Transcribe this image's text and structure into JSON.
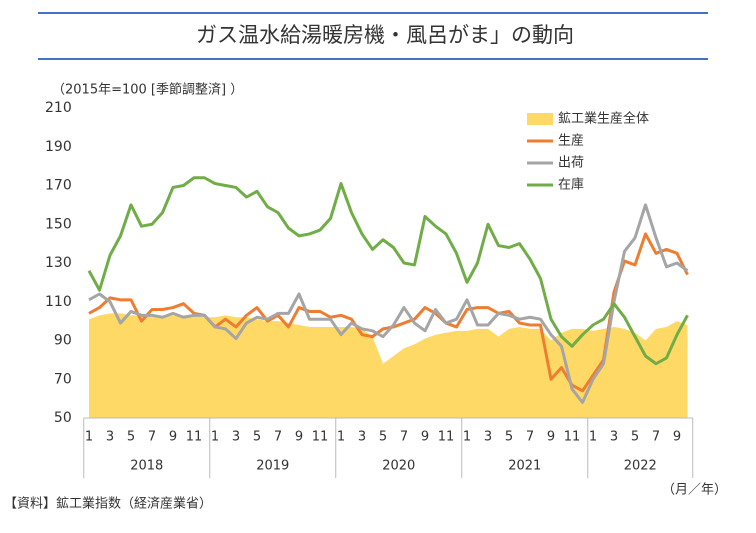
{
  "chart_data": {
    "type": "line",
    "title": "ガス温水給湯暖房機・風呂がま」の動向",
    "subtitle": "（2015年=100 [季節調整済] ）",
    "source": "【資料】鉱工業指数（経済産業省）",
    "x_unit": "（月／年）",
    "categories": [
      "1",
      null,
      "3",
      null,
      "5",
      null,
      "7",
      null,
      "9",
      null,
      "11",
      null,
      "1",
      null,
      "3",
      null,
      "5",
      null,
      "7",
      null,
      "9",
      null,
      "11",
      null,
      "1",
      null,
      "3",
      null,
      "5",
      null,
      "7",
      null,
      "9",
      null,
      "11",
      null,
      "1",
      null,
      "3",
      null,
      "5",
      null,
      "7",
      null,
      "9",
      null,
      "11",
      null,
      "1",
      null,
      "3",
      null,
      "5",
      null,
      "7",
      null,
      "9",
      null
    ],
    "years": [
      "2018",
      "2019",
      "2020",
      "2021",
      "2022"
    ],
    "ylim": [
      50,
      210
    ],
    "yticks": [
      50,
      70,
      90,
      110,
      130,
      150,
      170,
      190,
      210
    ],
    "series": [
      {
        "name": "鉱工業生産全体",
        "style": "area",
        "color": "#FFD966",
        "values": [
          101,
          103,
          104,
          104,
          103,
          103,
          102,
          103,
          103,
          103,
          103,
          102,
          102,
          103,
          102,
          102,
          101,
          100,
          100,
          99,
          98,
          97,
          97,
          97,
          97,
          97,
          96,
          92,
          78,
          82,
          86,
          88,
          91,
          93,
          94,
          95,
          95,
          96,
          96,
          92,
          96,
          97,
          96,
          96,
          90,
          94,
          96,
          96,
          95,
          96,
          97,
          96,
          94,
          90,
          96,
          97,
          100,
          98
        ]
      },
      {
        "name": "生産",
        "style": "line",
        "color": "#ED7D31",
        "values": [
          104,
          107,
          112,
          111,
          111,
          100,
          106,
          106,
          107,
          109,
          104,
          103,
          97,
          101,
          97,
          103,
          107,
          100,
          103,
          97,
          107,
          105,
          105,
          102,
          103,
          101,
          93,
          92,
          96,
          97,
          99,
          101,
          107,
          104,
          99,
          97,
          106,
          107,
          107,
          104,
          105,
          99,
          98,
          98,
          70,
          76,
          67,
          64,
          72,
          80,
          115,
          131,
          129,
          145,
          135,
          137,
          135,
          124
        ]
      },
      {
        "name": "出荷",
        "style": "line",
        "color": "#A5A5A5",
        "values": [
          111,
          114,
          110,
          99,
          105,
          103,
          103,
          102,
          104,
          102,
          103,
          103,
          97,
          96,
          91,
          99,
          102,
          101,
          104,
          104,
          114,
          101,
          101,
          101,
          93,
          99,
          96,
          95,
          92,
          98,
          107,
          99,
          95,
          106,
          99,
          101,
          111,
          98,
          98,
          104,
          103,
          101,
          102,
          101,
          93,
          87,
          65,
          58,
          70,
          78,
          110,
          136,
          143,
          160,
          143,
          128,
          130,
          126
        ]
      },
      {
        "name": "在庫",
        "style": "line",
        "color": "#70AD47",
        "values": [
          126,
          116,
          134,
          144,
          160,
          149,
          150,
          156,
          169,
          170,
          174,
          174,
          171,
          170,
          169,
          164,
          167,
          159,
          156,
          148,
          144,
          145,
          147,
          153,
          171,
          156,
          145,
          137,
          142,
          138,
          130,
          129,
          154,
          149,
          145,
          135,
          120,
          130,
          150,
          139,
          138,
          140,
          132,
          122,
          101,
          92,
          87,
          93,
          98,
          101,
          109,
          102,
          92,
          82,
          78,
          81,
          93,
          103
        ]
      }
    ]
  }
}
